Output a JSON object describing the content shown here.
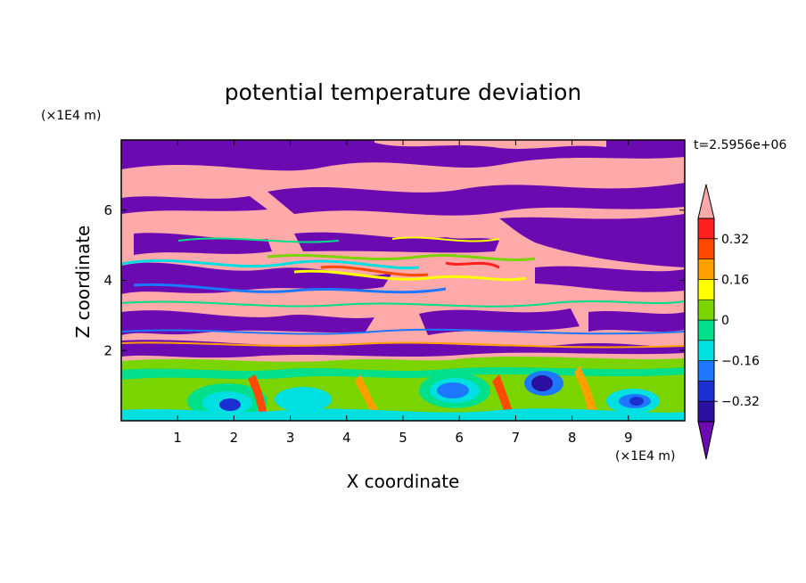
{
  "chart_data": {
    "type": "heatmap",
    "title": "potential temperature deviation",
    "xlabel": "X coordinate",
    "ylabel": "Z coordinate",
    "x_unit": "(×1E4 m)",
    "y_unit": "(×1E4 m)",
    "time_label": "t=2.5956e+06",
    "xlim": [
      0,
      10
    ],
    "ylim": [
      0,
      8
    ],
    "x_ticks": [
      1,
      2,
      3,
      4,
      5,
      6,
      7,
      8,
      9
    ],
    "y_ticks": [
      2,
      4,
      6
    ],
    "x_tick_labels": [
      "1",
      "2",
      "3",
      "4",
      "5",
      "6",
      "7",
      "8",
      "9"
    ],
    "y_tick_labels": [
      "2",
      "4",
      "6"
    ],
    "colorbar": {
      "levels": [
        -0.4,
        -0.32,
        -0.24,
        -0.16,
        -0.08,
        0,
        0.08,
        0.16,
        0.24,
        0.32,
        0.4
      ],
      "tick_values": [
        -0.32,
        -0.16,
        0,
        0.16,
        0.32
      ],
      "tick_labels": [
        "−0.32",
        "−0.16",
        "0",
        "0.16",
        "0.32"
      ],
      "colors": [
        "#6a0ab0",
        "#2b0fa0",
        "#1c2fd0",
        "#1e78ff",
        "#00e0e0",
        "#00e08a",
        "#7ad400",
        "#ffff00",
        "#ffa000",
        "#ff4a00",
        "#ff2020",
        "#ffaaaa"
      ],
      "extend": "both"
    }
  }
}
